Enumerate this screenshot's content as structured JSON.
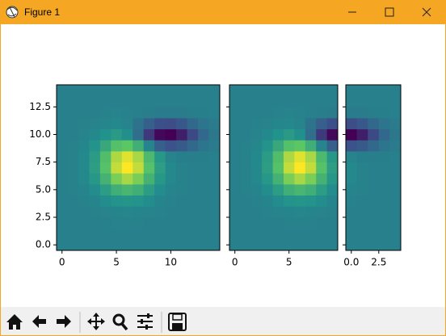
{
  "window": {
    "title": "Figure 1"
  },
  "chart_data": [
    {
      "type": "heatmap",
      "colormap": "viridis",
      "origin": "lower",
      "xlim": [
        -0.5,
        14.5
      ],
      "ylim": [
        -0.5,
        14.5
      ],
      "xticks": [
        0,
        5,
        10
      ],
      "yticks": [
        {
          "value": 0,
          "label": "0.0"
        },
        2.5,
        {
          "value": 5,
          "label": "5.0"
        },
        7.5,
        {
          "value": 10,
          "label": "10.0"
        },
        12.5
      ],
      "show_ytick_labels": true,
      "z": [
        [
          0,
          0,
          0,
          0,
          0,
          0,
          0,
          0,
          0,
          0,
          0,
          0,
          0,
          0,
          0
        ],
        [
          0,
          0,
          0,
          0,
          0,
          0,
          0,
          0,
          0,
          0,
          0,
          0,
          0,
          0,
          0
        ],
        [
          0,
          0,
          0,
          0,
          0,
          0.1,
          0.1,
          0.1,
          0,
          0,
          0,
          0,
          0,
          0,
          0
        ],
        [
          0,
          0,
          0,
          0.1,
          0.2,
          0.3,
          0.4,
          0.3,
          0.2,
          0.1,
          0,
          0,
          0,
          0,
          0
        ],
        [
          0,
          0,
          0.1,
          0.3,
          0.8,
          1.3,
          1.5,
          1.3,
          0.8,
          0.3,
          0.1,
          0,
          0,
          0,
          0
        ],
        [
          0,
          0.1,
          0.3,
          0.8,
          2,
          3.4,
          4,
          3.4,
          2,
          0.8,
          0.3,
          0.1,
          0,
          0,
          0
        ],
        [
          0,
          0.1,
          0.5,
          1.6,
          3.7,
          6.3,
          7.5,
          6.3,
          3.7,
          1.6,
          0.5,
          0.1,
          0,
          0,
          0
        ],
        [
          0,
          0.1,
          0.6,
          2.1,
          4.9,
          8.3,
          9.9,
          8.3,
          4.9,
          2.1,
          0.6,
          0.1,
          0,
          0,
          0
        ],
        [
          0,
          0.1,
          0.6,
          1.9,
          4.6,
          7.7,
          9.1,
          7.6,
          4.3,
          1.6,
          0.2,
          -0.1,
          -0.2,
          -0.1,
          0
        ],
        [
          0,
          0.1,
          0.4,
          1.3,
          2.9,
          4.8,
          5.3,
          3.4,
          0.3,
          -2.3,
          -3.2,
          -2.7,
          -1.7,
          -0.8,
          -0.3
        ],
        [
          0,
          0,
          0.2,
          0.6,
          1.2,
          1.8,
          1.1,
          -1.3,
          -4.6,
          -7.2,
          -7.6,
          -6,
          -3.7,
          -1.7,
          -0.6
        ],
        [
          0,
          0,
          0.1,
          0.2,
          0.4,
          0.5,
          0.2,
          -0.9,
          -2.3,
          -3.4,
          -3.5,
          -2.8,
          -1.7,
          -0.8,
          -0.3
        ],
        [
          0,
          0,
          0,
          0,
          0.1,
          0.2,
          0.1,
          0,
          -0.2,
          -0.3,
          -0.3,
          -0.3,
          -0.2,
          -0.1,
          0
        ],
        [
          0,
          0,
          0,
          0,
          0,
          0,
          0,
          0,
          0,
          0,
          0,
          0,
          0,
          0,
          0
        ],
        [
          0,
          0,
          0,
          0,
          0,
          0,
          0,
          0,
          0,
          0,
          0,
          0,
          0,
          0,
          0
        ]
      ]
    },
    {
      "type": "heatmap",
      "colormap": "viridis",
      "origin": "lower",
      "xlim": [
        -0.5,
        9.5
      ],
      "ylim": [
        -0.5,
        14.5
      ],
      "xticks": [
        0,
        5
      ],
      "yticks": [
        0,
        2.5,
        5,
        7.5,
        10,
        12.5
      ],
      "show_ytick_labels": false,
      "z": [
        [
          0,
          0,
          0,
          0,
          0,
          0,
          0,
          0,
          0,
          0
        ],
        [
          0,
          0,
          0,
          0,
          0,
          0,
          0,
          0,
          0,
          0
        ],
        [
          0,
          0,
          0,
          0,
          0,
          0.1,
          0.1,
          0.1,
          0,
          0
        ],
        [
          0,
          0,
          0,
          0.1,
          0.2,
          0.3,
          0.4,
          0.3,
          0.2,
          0.1
        ],
        [
          0,
          0,
          0.1,
          0.3,
          0.8,
          1.3,
          1.5,
          1.3,
          0.8,
          0.3
        ],
        [
          0,
          0.1,
          0.3,
          0.8,
          2,
          3.4,
          4,
          3.4,
          2,
          0.8
        ],
        [
          0,
          0.1,
          0.5,
          1.6,
          3.7,
          6.3,
          7.5,
          6.3,
          3.7,
          1.6
        ],
        [
          0,
          0.1,
          0.6,
          2.1,
          4.9,
          8.3,
          9.9,
          8.3,
          4.9,
          2.1
        ],
        [
          0,
          0.1,
          0.6,
          1.9,
          4.6,
          7.7,
          9.1,
          7.6,
          4.3,
          1.6
        ],
        [
          0,
          0.1,
          0.4,
          1.3,
          2.9,
          4.8,
          5.3,
          3.4,
          0.3,
          -2.3
        ],
        [
          0,
          0,
          0.2,
          0.6,
          1.2,
          1.8,
          1.1,
          -1.3,
          -4.6,
          -7.2
        ],
        [
          0,
          0,
          0.1,
          0.2,
          0.4,
          0.5,
          0.2,
          -0.9,
          -2.3,
          -3.4
        ],
        [
          0,
          0,
          0,
          0,
          0.1,
          0.2,
          0.1,
          0,
          -0.2,
          -0.3
        ],
        [
          0,
          0,
          0,
          0,
          0,
          0,
          0,
          0,
          0,
          0
        ],
        [
          0,
          0,
          0,
          0,
          0,
          0,
          0,
          0,
          0,
          0
        ]
      ]
    },
    {
      "type": "heatmap",
      "colormap": "viridis",
      "origin": "lower",
      "xlim": [
        -0.5,
        4.5
      ],
      "ylim": [
        -0.5,
        14.5
      ],
      "xticks": [
        {
          "value": 0,
          "label": "0.0"
        },
        2.5
      ],
      "yticks": [
        0,
        2.5,
        5,
        7.5,
        10,
        12.5
      ],
      "show_ytick_labels": false,
      "z": [
        [
          0,
          0,
          0,
          0,
          0
        ],
        [
          0,
          0,
          0,
          0,
          0
        ],
        [
          0,
          0,
          0,
          0,
          0
        ],
        [
          0,
          0,
          0,
          0,
          0
        ],
        [
          0.1,
          0,
          0,
          0,
          0
        ],
        [
          0.3,
          0.1,
          0,
          0,
          0
        ],
        [
          0.5,
          0.1,
          0,
          0,
          0
        ],
        [
          0.6,
          0.1,
          0,
          0,
          0
        ],
        [
          0.2,
          -0.1,
          -0.2,
          -0.1,
          0
        ],
        [
          -3.2,
          -2.7,
          -1.7,
          -0.8,
          -0.3
        ],
        [
          -7.6,
          -6,
          -3.7,
          -1.7,
          -0.6
        ],
        [
          -3.5,
          -2.8,
          -1.7,
          -0.8,
          -0.3
        ],
        [
          -0.3,
          -0.3,
          -0.2,
          -0.1,
          0
        ],
        [
          0,
          0,
          0,
          0,
          0
        ],
        [
          0,
          0,
          0,
          0,
          0
        ]
      ]
    }
  ]
}
